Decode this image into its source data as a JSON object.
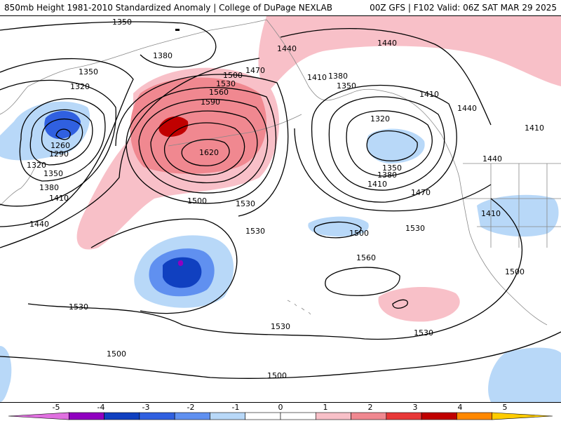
{
  "header": {
    "left": "850mb Height 1981-2010 Standardized Anomaly | College of DuPage NEXLAB",
    "right": "00Z GFS | F102 Valid: 06Z SAT MAR 29 2025"
  },
  "contour_labels": [
    "1350",
    "1380",
    "1440",
    "1440",
    "1350",
    "1320",
    "1260",
    "1290",
    "1320",
    "1350",
    "1380",
    "1410",
    "1440",
    "1500",
    "1530",
    "1560",
    "1590",
    "1620",
    "1470",
    "1410",
    "1380",
    "1350",
    "1320",
    "1350",
    "1380",
    "1410",
    "1410",
    "1440",
    "1410",
    "1440",
    "1410",
    "1470",
    "1500",
    "1530",
    "1530",
    "1500",
    "1530",
    "1560",
    "1530",
    "1530",
    "1530",
    "1500",
    "1500",
    "1500"
  ],
  "legend": {
    "ticks": [
      "-5",
      "-4",
      "-3",
      "-2",
      "-1",
      "0",
      "1",
      "2",
      "3",
      "4",
      "5"
    ],
    "colors": [
      "#e070e0",
      "#9000c0",
      "#1040c0",
      "#3060e0",
      "#6090f0",
      "#b8d8f8",
      "#ffffff",
      "#ffffff",
      "#f8c0c8",
      "#f08890",
      "#e83838",
      "#c00000",
      "#ff8800",
      "#ffcc00"
    ]
  }
}
